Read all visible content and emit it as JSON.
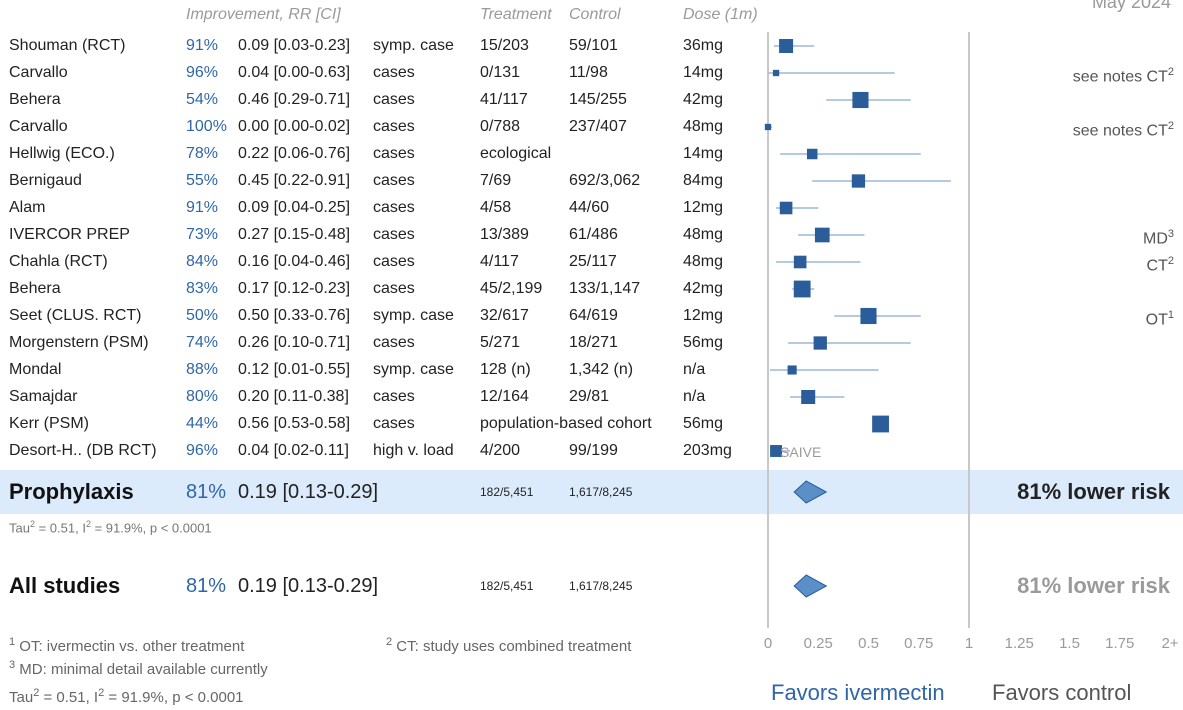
{
  "corner_label": "May 2024",
  "headers": {
    "improvement": "Improvement, RR [CI]",
    "treatment": "Treatment",
    "control": "Control",
    "dose": "Dose (1m)"
  },
  "studies": [
    {
      "name": "Shouman (RCT)",
      "improvement": "91%",
      "rr_text": "0.09 [0.03-0.23]",
      "outcome": "symp. case",
      "treatment": "15/203",
      "control": "59/101",
      "dose": "36mg",
      "note": "",
      "note_sup": ""
    },
    {
      "name": "Carvallo",
      "improvement": "96%",
      "rr_text": "0.04 [0.00-0.63]",
      "outcome": "cases",
      "treatment": "0/131",
      "control": "11/98",
      "dose": "14mg",
      "note": "see notes CT",
      "note_sup": "2"
    },
    {
      "name": "Behera",
      "improvement": "54%",
      "rr_text": "0.46 [0.29-0.71]",
      "outcome": "cases",
      "treatment": "41/117",
      "control": "145/255",
      "dose": "42mg",
      "note": "",
      "note_sup": ""
    },
    {
      "name": "Carvallo",
      "improvement": "100%",
      "rr_text": "0.00 [0.00-0.02]",
      "outcome": "cases",
      "treatment": "0/788",
      "control": "237/407",
      "dose": "48mg",
      "note": "see notes CT",
      "note_sup": "2"
    },
    {
      "name": "Hellwig (ECO.)",
      "improvement": "78%",
      "rr_text": "0.22 [0.06-0.76]",
      "outcome": "cases",
      "treatment": "ecological",
      "control": "",
      "dose": "14mg",
      "note": "",
      "note_sup": ""
    },
    {
      "name": "Bernigaud",
      "improvement": "55%",
      "rr_text": "0.45 [0.22-0.91]",
      "outcome": "cases",
      "treatment": "7/69",
      "control": "692/3,062",
      "dose": "84mg",
      "note": "",
      "note_sup": ""
    },
    {
      "name": "Alam",
      "improvement": "91%",
      "rr_text": "0.09 [0.04-0.25]",
      "outcome": "cases",
      "treatment": "4/58",
      "control": "44/60",
      "dose": "12mg",
      "note": "",
      "note_sup": ""
    },
    {
      "name": "IVERCOR PREP",
      "improvement": "73%",
      "rr_text": "0.27 [0.15-0.48]",
      "outcome": "cases",
      "treatment": "13/389",
      "control": "61/486",
      "dose": "48mg",
      "note": "MD",
      "note_sup": "3"
    },
    {
      "name": "Chahla (RCT)",
      "improvement": "84%",
      "rr_text": "0.16 [0.04-0.46]",
      "outcome": "cases",
      "treatment": "4/117",
      "control": "25/117",
      "dose": "48mg",
      "note": "CT",
      "note_sup": "2"
    },
    {
      "name": "Behera",
      "improvement": "83%",
      "rr_text": "0.17 [0.12-0.23]",
      "outcome": "cases",
      "treatment": "45/2,199",
      "control": "133/1,147",
      "dose": "42mg",
      "note": "",
      "note_sup": ""
    },
    {
      "name": "Seet (CLUS. RCT)",
      "improvement": "50%",
      "rr_text": "0.50 [0.33-0.76]",
      "outcome": "symp. case",
      "treatment": "32/617",
      "control": "64/619",
      "dose": "12mg",
      "note": "OT",
      "note_sup": "1"
    },
    {
      "name": "Morgenstern (PSM)",
      "improvement": "74%",
      "rr_text": "0.26 [0.10-0.71]",
      "outcome": "cases",
      "treatment": "5/271",
      "control": "18/271",
      "dose": "56mg",
      "note": "",
      "note_sup": ""
    },
    {
      "name": "Mondal",
      "improvement": "88%",
      "rr_text": "0.12 [0.01-0.55]",
      "outcome": "symp. case",
      "treatment": "128 (n)",
      "control": "1,342 (n)",
      "dose": "n/a",
      "note": "",
      "note_sup": ""
    },
    {
      "name": "Samajdar",
      "improvement": "80%",
      "rr_text": "0.20 [0.11-0.38]",
      "outcome": "cases",
      "treatment": "12/164",
      "control": "29/81",
      "dose": "n/a",
      "note": "",
      "note_sup": ""
    },
    {
      "name": "Kerr (PSM)",
      "improvement": "44%",
      "rr_text": "0.56 [0.53-0.58]",
      "outcome": "cases",
      "treatment": "population-based cohort",
      "control": "",
      "dose": "56mg",
      "note": "",
      "note_sup": ""
    },
    {
      "name": "Desort-H.. (DB RCT)",
      "improvement": "96%",
      "rr_text": "0.04 [0.02-0.11]",
      "outcome": "high v. load",
      "treatment": "4/200",
      "control": "99/199",
      "dose": "203mg",
      "note": "",
      "note_sup": ""
    }
  ],
  "plot_overlay_text": "SAIVE",
  "summary_prophylaxis": {
    "name": "Prophylaxis",
    "improvement": "81%",
    "rr_text": "0.19 [0.13-0.29]",
    "treatment": "182/5,451",
    "control": "1,617/8,245",
    "risk": "81% lower risk",
    "stat_tau": "Tau",
    "stat_rest": " = 0.51, I",
    "stat_end": " = 91.9%, p < 0.0001"
  },
  "summary_all": {
    "name": "All studies",
    "improvement": "81%",
    "rr_text": "0.19 [0.13-0.29]",
    "treatment": "182/5,451",
    "control": "1,617/8,245",
    "risk": "81% lower risk"
  },
  "footnotes": {
    "n1": "1",
    "t1": " OT: ivermectin vs. other treatment",
    "n2": "2",
    "t2": " CT: study uses combined treatment",
    "n3": "3",
    "t3": " MD: minimal detail available currently",
    "tau_a": "Tau",
    "tau_b": " = 0.51, I",
    "tau_c": " = 91.9%, p < 0.0001",
    "sq": "2"
  },
  "favors": {
    "left": "Favors ivermectin",
    "right": "Favors control"
  },
  "colors": {
    "accent": "#2f66a8",
    "marker": "#2a5d9a",
    "ci": "#9bb9d6",
    "band": "#dcebfb",
    "diamond": "#5b8fc7"
  },
  "chart_data": {
    "type": "forest",
    "x_scale": "linear",
    "xlim": [
      0,
      2
    ],
    "tick_labels": [
      "0",
      "0.25",
      "0.5",
      "0.75",
      "1",
      "1.25",
      "1.5",
      "1.75",
      "2+"
    ],
    "tick_values": [
      0,
      0.25,
      0.5,
      0.75,
      1,
      1.25,
      1.5,
      1.75,
      2
    ],
    "reference_line": 1,
    "points": [
      {
        "rr": 0.09,
        "lo": 0.03,
        "hi": 0.23,
        "weight": 1.0
      },
      {
        "rr": 0.04,
        "lo": 0.0,
        "hi": 0.63,
        "weight": 0.45
      },
      {
        "rr": 0.46,
        "lo": 0.29,
        "hi": 0.71,
        "weight": 1.15
      },
      {
        "rr": 0.0,
        "lo": 0.0,
        "hi": 0.02,
        "weight": 0.45
      },
      {
        "rr": 0.22,
        "lo": 0.06,
        "hi": 0.76,
        "weight": 0.75
      },
      {
        "rr": 0.45,
        "lo": 0.22,
        "hi": 0.91,
        "weight": 0.95
      },
      {
        "rr": 0.09,
        "lo": 0.04,
        "hi": 0.25,
        "weight": 0.9
      },
      {
        "rr": 0.27,
        "lo": 0.15,
        "hi": 0.48,
        "weight": 1.05
      },
      {
        "rr": 0.16,
        "lo": 0.04,
        "hi": 0.46,
        "weight": 0.9
      },
      {
        "rr": 0.17,
        "lo": 0.12,
        "hi": 0.23,
        "weight": 1.2
      },
      {
        "rr": 0.5,
        "lo": 0.33,
        "hi": 0.76,
        "weight": 1.15
      },
      {
        "rr": 0.26,
        "lo": 0.1,
        "hi": 0.71,
        "weight": 0.95
      },
      {
        "rr": 0.12,
        "lo": 0.01,
        "hi": 0.55,
        "weight": 0.65
      },
      {
        "rr": 0.2,
        "lo": 0.11,
        "hi": 0.38,
        "weight": 1.0
      },
      {
        "rr": 0.56,
        "lo": 0.53,
        "hi": 0.58,
        "weight": 1.2
      },
      {
        "rr": 0.04,
        "lo": 0.02,
        "hi": 0.11,
        "weight": 0.85
      }
    ],
    "summaries": [
      {
        "label": "Prophylaxis",
        "rr": 0.19,
        "lo": 0.13,
        "hi": 0.29
      },
      {
        "label": "All studies",
        "rr": 0.19,
        "lo": 0.13,
        "hi": 0.29
      }
    ]
  }
}
